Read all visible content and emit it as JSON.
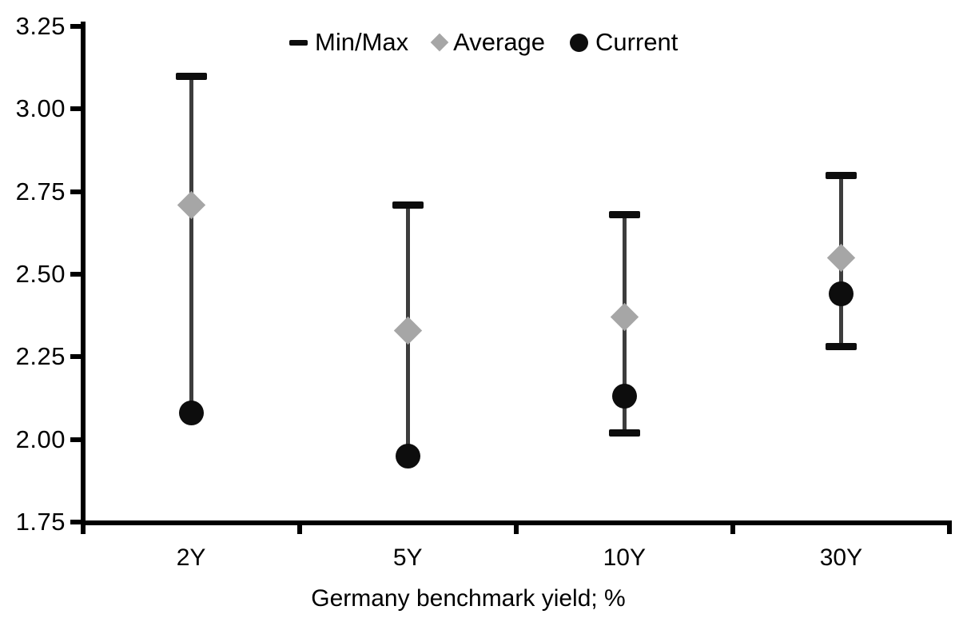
{
  "chart_data": {
    "type": "scatter",
    "subtype": "min-max-range-with-average-and-current",
    "title": "",
    "xlabel": "Germany benchmark yield; %",
    "ylabel": "",
    "ylim": [
      1.75,
      3.25
    ],
    "y_tick_values": [
      3.25,
      3.0,
      2.75,
      2.5,
      2.25,
      2.0,
      1.75
    ],
    "y_tick_labels": [
      "3.25",
      "3.00",
      "2.75",
      "2.50",
      "2.25",
      "2.00",
      "1.75"
    ],
    "categories": [
      "2Y",
      "5Y",
      "10Y",
      "30Y"
    ],
    "grid": "off",
    "legend_position": "top-center",
    "legend": [
      {
        "label": "Min/Max",
        "marker": "dash"
      },
      {
        "label": "Average",
        "marker": "diamond"
      },
      {
        "label": "Current",
        "marker": "circle"
      }
    ],
    "series": [
      {
        "name": "Min/Max",
        "type": "range",
        "max": [
          3.1,
          2.71,
          2.68,
          2.8
        ],
        "min": [
          2.08,
          1.95,
          2.02,
          2.28
        ],
        "min_cap_visible": [
          false,
          false,
          true,
          true
        ]
      },
      {
        "name": "Average",
        "type": "diamond",
        "values": [
          2.71,
          2.33,
          2.37,
          2.55
        ]
      },
      {
        "name": "Current",
        "type": "circle",
        "values": [
          2.08,
          1.95,
          2.13,
          2.44
        ]
      }
    ]
  },
  "colors": {
    "background": "#ffffff",
    "axis": "#000000",
    "text": "#000000",
    "range_line": "#3d3d3d",
    "cap": "#0d0d0d",
    "average_marker": "#a6a6a6",
    "current_marker": "#0d0d0d"
  }
}
